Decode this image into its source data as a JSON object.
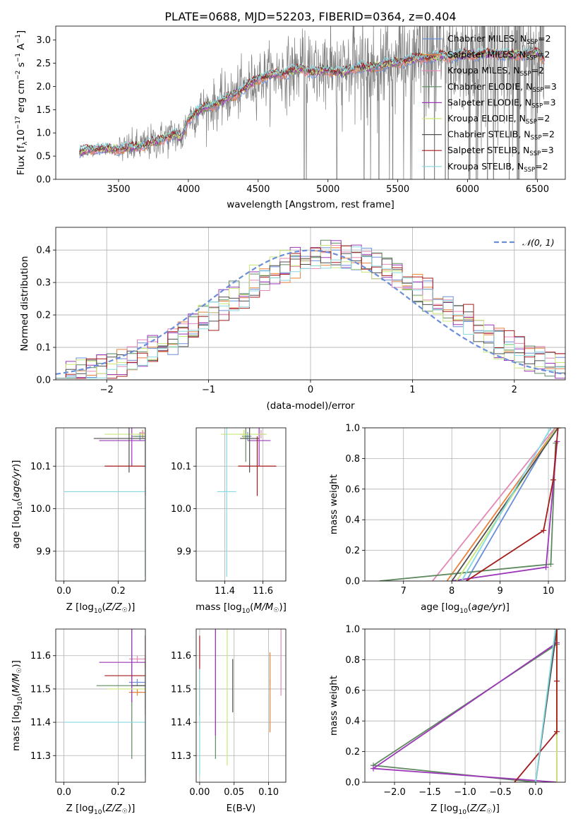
{
  "title": "PLATE=0688, MJD=52203, FIBERID=0364, z=0.404",
  "colors": {
    "chabrier_miles": "#6c8ed8",
    "salpeter_miles": "#e8803a",
    "kroupa_miles": "#e387b6",
    "chabrier_elodie": "#5f8a60",
    "salpeter_elodie": "#9c37b8",
    "kroupa_elodie": "#c8e878",
    "chabrier_stelib": "#4f4f4f",
    "salpeter_stelib": "#a51c1c",
    "kroupa_stelib": "#86d9e0",
    "data": "#7f7f7f",
    "grid": "#b0b0b0"
  },
  "chart_data": [
    {
      "id": "spectrum",
      "type": "line",
      "xlabel": "wavelength [Angstrom, rest frame]",
      "ylabel": "Flux [f_λ10^-17 erg cm^-2 s^-1 A^-1]",
      "xlim": [
        3050,
        6700
      ],
      "ylim": [
        0,
        3.3
      ],
      "xticks": [
        3500,
        4000,
        4500,
        5000,
        5500,
        6000,
        6500
      ],
      "yticks": [
        0.0,
        0.5,
        1.0,
        1.5,
        2.0,
        2.5,
        3.0
      ],
      "grid": false,
      "legend_position": "top-right",
      "legend": [
        {
          "label": "Chabrier MILES, N_SSP=2",
          "base": "Chabrier MILES, N",
          "sub": "SSP",
          "tail": "=2",
          "color": "#6c8ed8"
        },
        {
          "label": "Salpeter MILES, N_SSP=2",
          "base": "Salpeter MILES, N",
          "sub": "SSP",
          "tail": "=2",
          "color": "#e8803a"
        },
        {
          "label": "Kroupa MILES, N_SSP=2",
          "base": "Kroupa MILES, N",
          "sub": "SSP",
          "tail": "=2",
          "color": "#e387b6"
        },
        {
          "label": "Chabrier ELODIE, N_SSP=3",
          "base": "Chabrier ELODIE, N",
          "sub": "SSP",
          "tail": "=3",
          "color": "#5f8a60"
        },
        {
          "label": "Salpeter ELODIE, N_SSP=3",
          "base": "Salpeter ELODIE, N",
          "sub": "SSP",
          "tail": "=3",
          "color": "#9c37b8"
        },
        {
          "label": "Kroupa ELODIE, N_SSP=2",
          "base": "Kroupa ELODIE, N",
          "sub": "SSP",
          "tail": "=2",
          "color": "#c8e878"
        },
        {
          "label": "Chabrier STELIB, N_SSP=2",
          "base": "Chabrier STELIB, N",
          "sub": "SSP",
          "tail": "=2",
          "color": "#4f4f4f"
        },
        {
          "label": "Salpeter STELIB, N_SSP=3",
          "base": "Salpeter STELIB, N",
          "sub": "SSP",
          "tail": "=3",
          "color": "#a51c1c"
        },
        {
          "label": "Kroupa STELIB, N_SSP=2",
          "base": "Kroupa STELIB, N",
          "sub": "SSP",
          "tail": "=2",
          "color": "#86d9e0"
        }
      ],
      "model_continuum": {
        "wavelength": [
          3220,
          3300,
          3400,
          3500,
          3600,
          3700,
          3800,
          3900,
          3950,
          4000,
          4100,
          4200,
          4300,
          4400,
          4500,
          4600,
          4700,
          4800,
          4900,
          5000,
          5100,
          5200,
          5300,
          5400,
          5500,
          5600,
          5700,
          5800,
          5900,
          6000,
          6100,
          6200,
          6300,
          6400,
          6500,
          6550
        ],
        "flux": [
          0.58,
          0.65,
          0.66,
          0.64,
          0.68,
          0.75,
          0.85,
          0.98,
          0.88,
          1.3,
          1.52,
          1.62,
          1.78,
          1.95,
          2.18,
          2.25,
          2.3,
          2.38,
          2.3,
          2.36,
          2.28,
          2.42,
          2.4,
          2.47,
          2.52,
          2.58,
          2.62,
          2.65,
          2.66,
          2.68,
          2.7,
          2.72,
          2.66,
          2.7,
          2.72,
          2.6
        ]
      },
      "data_spectrum": {
        "wavelength_range": [
          3220,
          6550
        ],
        "noise_increasing_to_red": true
      }
    },
    {
      "id": "residuals",
      "type": "step",
      "xlabel": "(data-model)/error",
      "ylabel": "Normed distribution",
      "xlim": [
        -2.5,
        2.5
      ],
      "ylim": [
        0,
        0.47
      ],
      "xticks": [
        -2,
        -1,
        0,
        1,
        2
      ],
      "xtick_labels": [
        "−2",
        "−1",
        "0",
        "1",
        "2"
      ],
      "yticks": [
        0.0,
        0.1,
        0.2,
        0.3,
        0.4
      ],
      "grid": true,
      "legend_position": "top-right",
      "legend": [
        {
          "label": "𝒩(0, 1)",
          "color": "#6c8ed8",
          "dashed": true
        }
      ],
      "bin_width": 0.1,
      "reference_curve": {
        "type": "normal",
        "mean": 0,
        "sigma": 1
      }
    },
    {
      "id": "age_vs_Z",
      "type": "errorbar",
      "xlabel": "Z [log₁₀(Z/Z☉)]",
      "ylabel": "age  [log₁₀(age/yr)]",
      "xlim": [
        -0.03,
        0.3
      ],
      "ylim": [
        9.83,
        10.19
      ],
      "xticks": [
        0.0,
        0.2
      ],
      "xtick_labels": [
        "0.0",
        "0.2"
      ],
      "yticks": [
        9.9,
        10.0,
        10.1
      ],
      "ytick_labels": [
        "9.9",
        "10.0",
        "10.1"
      ],
      "grid": true,
      "points": [
        {
          "model": "Chabrier MILES",
          "x": 0.28,
          "xerr": 0.02,
          "y": 10.17,
          "yerr": 0.01
        },
        {
          "model": "Salpeter MILES",
          "x": 0.29,
          "xerr": 0.02,
          "y": 10.175,
          "yerr": 0.01
        },
        {
          "model": "Kroupa MILES",
          "x": 0.3,
          "xerr": 0.02,
          "y": 10.178,
          "yerr": 0.005
        },
        {
          "model": "Chabrier ELODIE",
          "x": 0.3,
          "xerr": 0.05,
          "y": 10.17,
          "yerr": 0.06
        },
        {
          "model": "Salpeter ELODIE",
          "x": 0.25,
          "xerr": 0.12,
          "y": 10.16,
          "yerr": 0.06
        },
        {
          "model": "Kroupa ELODIE",
          "x": 0.3,
          "xerr": 0.15,
          "y": 10.175,
          "yerr": 0.01
        },
        {
          "model": "Chabrier STELIB",
          "x": 0.24,
          "xerr": 0.13,
          "y": 10.165,
          "yerr": 0.08
        },
        {
          "model": "Salpeter STELIB",
          "x": 0.3,
          "xerr": 0.15,
          "y": 10.1,
          "yerr": 0.07
        },
        {
          "model": "Kroupa STELIB",
          "x": 0.3,
          "xerr": 0.3,
          "y": 10.04,
          "yerr": 0.2
        }
      ]
    },
    {
      "id": "age_vs_mass",
      "type": "errorbar",
      "xlabel": "mass [log₁₀(M/M☉)]",
      "xlim": [
        11.25,
        11.72
      ],
      "ylim": [
        9.83,
        10.19
      ],
      "xticks": [
        11.4,
        11.6
      ],
      "xtick_labels": [
        "11.4",
        "11.6"
      ],
      "yticks": [
        9.9,
        10.0,
        10.1
      ],
      "ytick_labels": [
        "9.9",
        "10.0",
        "10.1"
      ],
      "grid": true,
      "points": [
        {
          "model": "Chabrier MILES",
          "x": 11.52,
          "xerr": 0.02,
          "y": 10.17,
          "yerr": 0.01
        },
        {
          "model": "Salpeter MILES",
          "x": 11.5,
          "xerr": 0.02,
          "y": 10.175,
          "yerr": 0.01
        },
        {
          "model": "Kroupa MILES",
          "x": 11.59,
          "xerr": 0.02,
          "y": 10.175,
          "yerr": 0.01
        },
        {
          "model": "Chabrier ELODIE",
          "x": 11.51,
          "xerr": 0.02,
          "y": 10.17,
          "yerr": 0.06
        },
        {
          "model": "Salpeter ELODIE",
          "x": 11.58,
          "xerr": 0.06,
          "y": 10.16,
          "yerr": 0.06
        },
        {
          "model": "Kroupa ELODIE",
          "x": 11.5,
          "xerr": 0.12,
          "y": 10.175,
          "yerr": 0.01
        },
        {
          "model": "Chabrier STELIB",
          "x": 11.53,
          "xerr": 0.05,
          "y": 10.165,
          "yerr": 0.08
        },
        {
          "model": "Salpeter STELIB",
          "x": 11.57,
          "xerr": 0.1,
          "y": 10.1,
          "yerr": 0.07
        },
        {
          "model": "Kroupa STELIB",
          "x": 11.41,
          "xerr": 0.05,
          "y": 10.04,
          "yerr": 0.2
        }
      ]
    },
    {
      "id": "massweight_vs_age",
      "type": "line",
      "xlabel": "age  [log₁₀(age/yr)]",
      "ylabel": "mass weight",
      "xlim": [
        6.2,
        10.35
      ],
      "ylim": [
        0,
        1
      ],
      "xticks": [
        7,
        8,
        9,
        10
      ],
      "yticks": [
        0.0,
        0.2,
        0.4,
        0.6,
        0.8,
        1.0
      ],
      "grid": true,
      "series": [
        {
          "model": "Chabrier MILES",
          "x": [
            8.3,
            10.15
          ],
          "y": [
            0.0,
            1.0
          ]
        },
        {
          "model": "Salpeter MILES",
          "x": [
            7.9,
            10.17
          ],
          "y": [
            0.0,
            1.0
          ]
        },
        {
          "model": "Kroupa MILES",
          "x": [
            7.6,
            10.14
          ],
          "y": [
            0.0,
            1.0
          ]
        },
        {
          "model": "Chabrier ELODIE",
          "x": [
            6.5,
            10.05,
            10.15
          ],
          "y": [
            0.0,
            0.11,
            0.9
          ]
        },
        {
          "model": "Salpeter ELODIE",
          "x": [
            8.0,
            9.95,
            10.18
          ],
          "y": [
            0.0,
            0.09,
            0.91
          ]
        },
        {
          "model": "Kroupa ELODIE",
          "x": [
            8.1,
            10.17
          ],
          "y": [
            0.0,
            1.0
          ]
        },
        {
          "model": "Chabrier STELIB",
          "x": [
            8.0,
            10.2
          ],
          "y": [
            0.0,
            1.0
          ]
        },
        {
          "model": "Salpeter STELIB",
          "x": [
            8.3,
            9.9,
            10.1,
            10.2
          ],
          "y": [
            0.0,
            0.33,
            0.66,
            1.0
          ]
        },
        {
          "model": "Kroupa STELIB",
          "x": [
            8.2,
            10.05
          ],
          "y": [
            0.0,
            1.0
          ]
        }
      ]
    },
    {
      "id": "mass_vs_Z",
      "type": "errorbar",
      "xlabel": "Z [log₁₀(Z/Z☉)]",
      "ylabel": "mass [log₁₀(M/M☉)]",
      "xlim": [
        -0.03,
        0.3
      ],
      "ylim": [
        11.22,
        11.68
      ],
      "xticks": [
        0.0,
        0.2
      ],
      "xtick_labels": [
        "0.0",
        "0.2"
      ],
      "yticks": [
        11.3,
        11.4,
        11.5,
        11.6
      ],
      "ytick_labels": [
        "11.3",
        "11.4",
        "11.5",
        "11.6"
      ],
      "grid": true,
      "points": [
        {
          "model": "Chabrier MILES",
          "x": 0.27,
          "xerr": 0.03,
          "y": 11.52,
          "yerr": 0.01
        },
        {
          "model": "Salpeter MILES",
          "x": 0.27,
          "xerr": 0.03,
          "y": 11.49,
          "yerr": 0.01
        },
        {
          "model": "Kroupa MILES",
          "x": 0.27,
          "xerr": 0.03,
          "y": 11.59,
          "yerr": 0.01
        },
        {
          "model": "Chabrier ELODIE",
          "x": 0.25,
          "xerr": 0.13,
          "y": 11.51,
          "yerr": 0.22
        },
        {
          "model": "Salpeter ELODIE",
          "x": 0.25,
          "xerr": 0.12,
          "y": 11.58,
          "yerr": 0.12
        },
        {
          "model": "Kroupa ELODIE",
          "x": 0.3,
          "xerr": 0.14,
          "y": 11.5,
          "yerr": 0.02
        },
        {
          "model": "Chabrier STELIB",
          "x": 0.3,
          "xerr": 0.05,
          "y": 11.51,
          "yerr": 0.07
        },
        {
          "model": "Salpeter STELIB",
          "x": 0.3,
          "xerr": 0.15,
          "y": 11.54,
          "yerr": 0.12
        },
        {
          "model": "Kroupa STELIB",
          "x": 0.3,
          "xerr": 0.3,
          "y": 11.4,
          "yerr": 0.16
        }
      ]
    },
    {
      "id": "mass_vs_ebv",
      "type": "errorbar",
      "xlabel": "E(B-V)",
      "xlim": [
        -0.005,
        0.125
      ],
      "ylim": [
        11.22,
        11.68
      ],
      "xticks": [
        0.0,
        0.05,
        0.1
      ],
      "xtick_labels": [
        "0.00",
        "0.05",
        "0.10"
      ],
      "yticks": [
        11.3,
        11.4,
        11.5,
        11.6
      ],
      "ytick_labels": [
        "11.3",
        "11.4",
        "11.5",
        "11.6"
      ],
      "grid": true,
      "points": [
        {
          "model": "Chabrier MILES",
          "x": 0.102,
          "xerr": 0,
          "y": 11.52,
          "yerr": 0.01
        },
        {
          "model": "Salpeter MILES",
          "x": 0.102,
          "xerr": 0,
          "y": 11.49,
          "yerr": 0.12
        },
        {
          "model": "Kroupa MILES",
          "x": 0.118,
          "xerr": 0,
          "y": 11.59,
          "yerr": 0.11
        },
        {
          "model": "Chabrier ELODIE",
          "x": 0.023,
          "xerr": 0,
          "y": 11.51,
          "yerr": 0.22
        },
        {
          "model": "Salpeter ELODIE",
          "x": 0.023,
          "xerr": 0,
          "y": 11.58,
          "yerr": 0.22
        },
        {
          "model": "Kroupa ELODIE",
          "x": 0.04,
          "xerr": 0,
          "y": 11.5,
          "yerr": 0.23
        },
        {
          "model": "Chabrier STELIB",
          "x": 0.048,
          "xerr": 0,
          "y": 11.51,
          "yerr": 0.08
        },
        {
          "model": "Salpeter STELIB",
          "x": 0.0,
          "xerr": 0,
          "y": 11.54,
          "yerr": 0.12
        },
        {
          "model": "Kroupa STELIB",
          "x": 0.0,
          "xerr": 0,
          "y": 11.4,
          "yerr": 0.16
        }
      ]
    },
    {
      "id": "massweight_vs_Z",
      "type": "line",
      "xlabel": "Z [log₁₀(Z/Z☉)]",
      "ylabel": "mass weight",
      "xlim": [
        -2.42,
        0.42
      ],
      "ylim": [
        0,
        1
      ],
      "xticks": [
        -2.0,
        -1.5,
        -1.0,
        -0.5,
        0.0
      ],
      "xtick_labels": [
        "−2.0",
        "−1.5",
        "−1.0",
        "−0.5",
        "0.0"
      ],
      "yticks": [
        0.0,
        0.2,
        0.4,
        0.6,
        0.8,
        1.0
      ],
      "ytick_labels": [
        "0.0",
        "0.2",
        "0.4",
        "0.6",
        "0.8",
        "1.0"
      ],
      "grid": true,
      "series": [
        {
          "model": "Chabrier MILES",
          "x": [
            0.0,
            0.3
          ],
          "y": [
            0.0,
            1.0
          ]
        },
        {
          "model": "Salpeter MILES",
          "x": [
            0.3,
            0.3
          ],
          "y": [
            0.0,
            1.0
          ]
        },
        {
          "model": "Kroupa MILES",
          "x": [
            0.3,
            0.3
          ],
          "y": [
            0.0,
            1.0
          ]
        },
        {
          "model": "Chabrier ELODIE",
          "x": [
            0.0,
            -2.3,
            0.3
          ],
          "y": [
            0.0,
            0.11,
            0.9
          ]
        },
        {
          "model": "Salpeter ELODIE",
          "x": [
            0.3,
            -2.3,
            0.3
          ],
          "y": [
            0.0,
            0.09,
            0.91
          ]
        },
        {
          "model": "Kroupa ELODIE",
          "x": [
            0.3,
            0.3
          ],
          "y": [
            0.0,
            1.0
          ]
        },
        {
          "model": "Chabrier STELIB",
          "x": [
            0.0,
            0.3
          ],
          "y": [
            0.0,
            1.0
          ]
        },
        {
          "model": "Salpeter STELIB",
          "x": [
            -0.3,
            0.3,
            0.3,
            0.3
          ],
          "y": [
            0.0,
            0.33,
            0.66,
            1.0
          ]
        },
        {
          "model": "Kroupa STELIB",
          "x": [
            0.0,
            0.28
          ],
          "y": [
            0.0,
            1.0
          ]
        }
      ]
    }
  ]
}
